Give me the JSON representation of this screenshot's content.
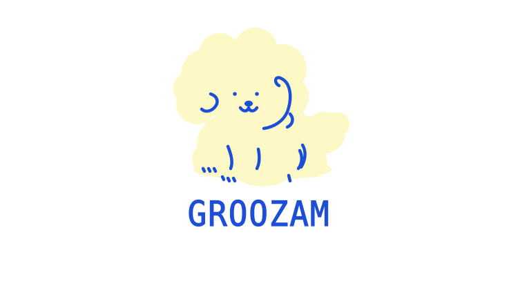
{
  "brand": {
    "name": "GROOZAM",
    "colors": {
      "fur": "#fdf9c6",
      "line": "#1c4fd6",
      "background": "#ffffff"
    }
  },
  "logo": {
    "icon": "poodle-dog-icon"
  }
}
